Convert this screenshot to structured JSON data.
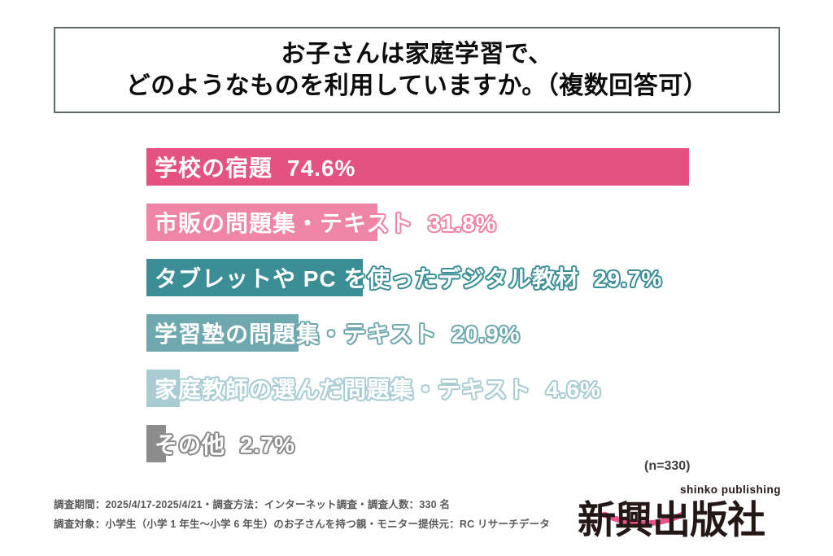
{
  "title": {
    "line1": "お子さんは家庭学習で、",
    "line2": "どのようなものを利用していますか。（複数回答可）"
  },
  "chart_data": {
    "type": "bar",
    "orientation": "horizontal",
    "title": "お子さんは家庭学習で、どのようなものを利用していますか。（複数回答可）",
    "xlim": [
      0,
      80
    ],
    "grid": false,
    "legend": false,
    "sample_note": "(n=330)",
    "categories": [
      "学校の宿題",
      "市販の問題集・テキスト",
      "タブレットや PC を使ったデジタル教材",
      "学習塾の問題集・テキスト",
      "家庭教師の選んだ問題集・テキスト",
      "その他"
    ],
    "values": [
      74.6,
      31.8,
      29.7,
      20.9,
      4.6,
      2.7
    ],
    "series": [
      {
        "label": "学校の宿題",
        "value": 74.6,
        "display": "74.6%",
        "color": "#e4537f"
      },
      {
        "label": "市販の問題集・テキスト",
        "value": 31.8,
        "display": "31.8%",
        "color": "#ee85a5"
      },
      {
        "label": "タブレットや PC を使ったデジタル教材",
        "value": 29.7,
        "display": "29.7%",
        "color": "#3c8e96"
      },
      {
        "label": "学習塾の問題集・テキスト",
        "value": 20.9,
        "display": "20.9%",
        "color": "#6fa8ae"
      },
      {
        "label": "家庭教師の選んだ問題集・テキスト",
        "value": 4.6,
        "display": "4.6%",
        "color": "#a8ccd1"
      },
      {
        "label": "その他",
        "value": 2.7,
        "display": "2.7%",
        "color": "#8c8c8c"
      }
    ]
  },
  "footer": {
    "line1": "調査期間：2025/4/17-2025/4/21・調査方法：インターネット調査・調査人数：330 名",
    "line2": "調査対象：小学生（小学 1 年生～小学 6 年生）のお子さんを持つ親・モニター提供元：RC リサーチデータ"
  },
  "branding": {
    "logo_text": "新興出版社",
    "logo_subtext": "shinko publishing",
    "logo_color": "#231815",
    "logo_accent_color": "#e9538a"
  }
}
